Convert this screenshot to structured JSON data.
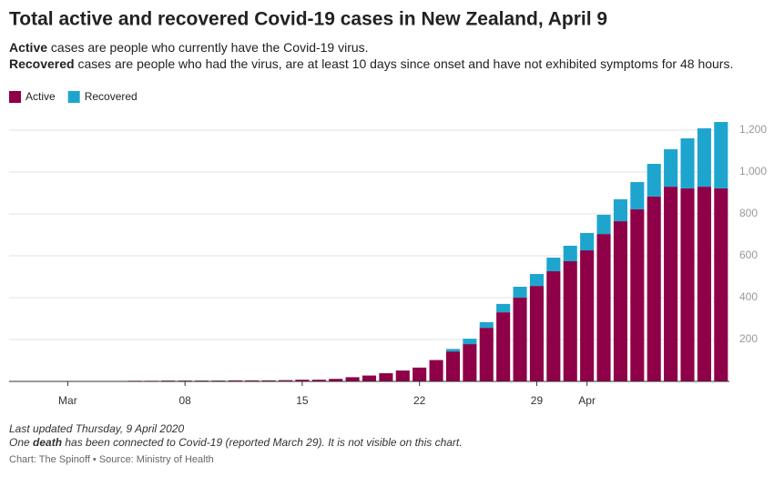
{
  "chart_data": {
    "type": "stacked_bar",
    "title": "Total active and recovered Covid-19 cases in New Zealand, April 9",
    "subtitle": [
      {
        "bold": "Active",
        "text": " cases are people who currently have the Covid-19 virus."
      },
      {
        "bold": "Recovered",
        "text": " cases are people who had the virus, are at least 10 days since onset and have not exhibited symptoms for 48 hours."
      }
    ],
    "notes": {
      "updated": "Last updated Thursday, 9 April 2020",
      "death": [
        "One ",
        "death",
        " has been connected to Covid-19 (reported March 29). It is not visible on this chart."
      ],
      "source": "Chart: The Spinoff • Source: Ministry of Health"
    },
    "categories": [
      null,
      null,
      null,
      "Mar",
      null,
      null,
      null,
      null,
      null,
      null,
      "08",
      null,
      null,
      null,
      null,
      null,
      null,
      "15",
      null,
      null,
      null,
      null,
      null,
      null,
      "22",
      null,
      null,
      null,
      null,
      null,
      null,
      "29",
      null,
      null,
      "Apr",
      null,
      null,
      null,
      null,
      null,
      null,
      null,
      null
    ],
    "series": [
      {
        "name": "Active",
        "color": "#8e0047",
        "values": [
          0,
          1,
          1,
          1,
          1,
          1,
          2,
          3,
          3,
          4,
          4,
          4,
          4,
          5,
          5,
          5,
          6,
          8,
          8,
          12,
          20,
          28,
          39,
          52,
          66,
          102,
          143,
          178,
          256,
          330,
          400,
          456,
          526,
          574,
          626,
          704,
          765,
          822,
          883,
          930,
          922,
          930,
          922
        ]
      },
      {
        "name": "Recovered",
        "color": "#1ea5ce",
        "values": [
          0,
          0,
          0,
          0,
          0,
          0,
          0,
          0,
          0,
          0,
          0,
          0,
          0,
          0,
          0,
          0,
          0,
          0,
          0,
          0,
          0,
          0,
          0,
          0,
          0,
          0,
          12,
          26,
          27,
          40,
          52,
          57,
          65,
          74,
          83,
          92,
          105,
          130,
          156,
          179,
          239,
          279,
          317
        ]
      }
    ],
    "ylim": [
      0,
      1250
    ],
    "yticks": [
      200,
      400,
      600,
      800,
      {
        "value": 1000,
        "label": "1,000"
      },
      {
        "value": 1200,
        "label": "1,200"
      }
    ],
    "grid": true,
    "legend": "top-left"
  }
}
